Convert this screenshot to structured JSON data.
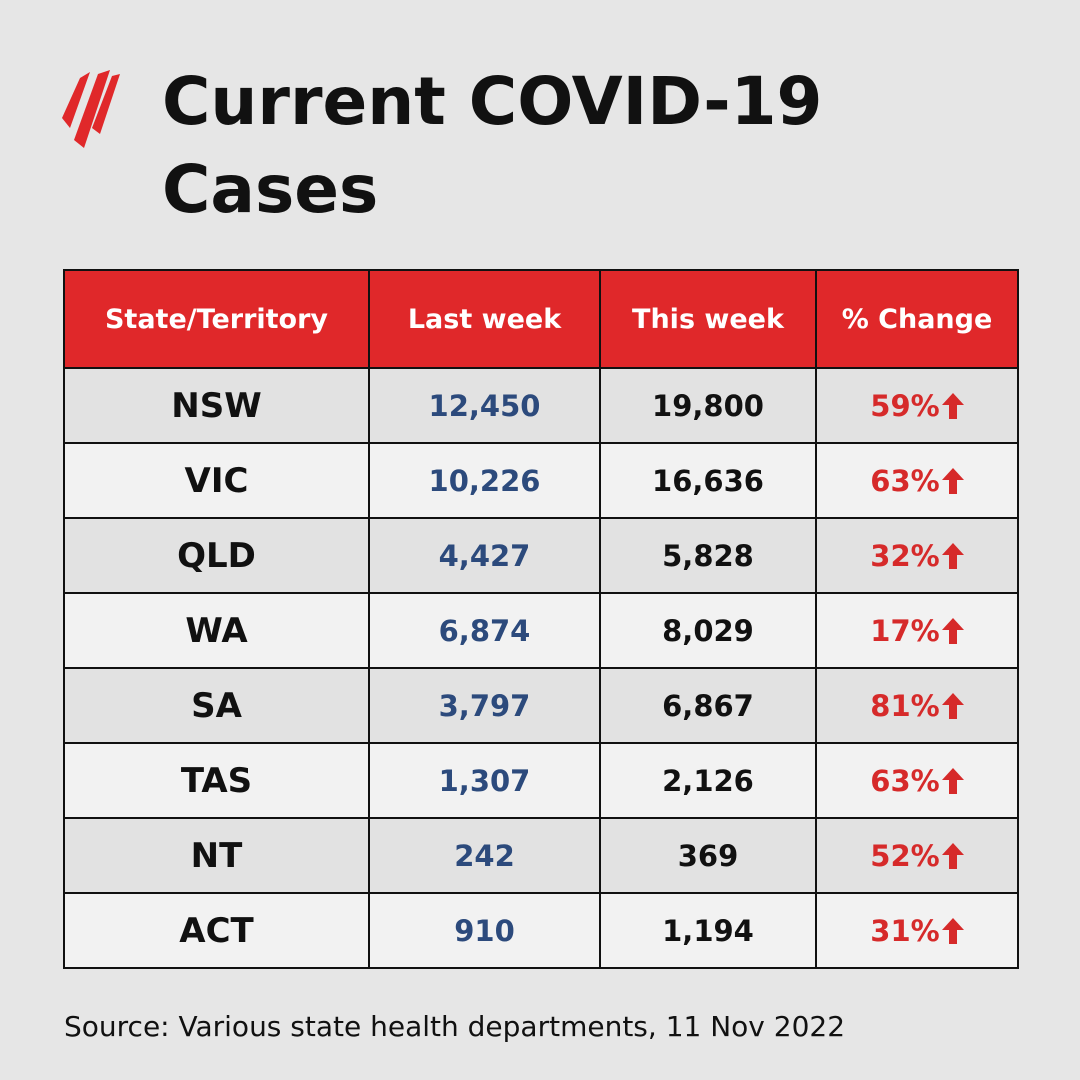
{
  "header": {
    "title_lines": [
      "Current COVID-19",
      "Cases"
    ]
  },
  "table": {
    "columns": [
      "State/Territory",
      "Last week",
      "This week",
      "% Change"
    ],
    "rows": [
      [
        "NSW",
        "12,450",
        "19,800",
        "59%"
      ],
      [
        "VIC",
        "10,226",
        "16,636",
        "63%"
      ],
      [
        "QLD",
        "4,427",
        "5,828",
        "32%"
      ],
      [
        "WA",
        "6,874",
        "8,029",
        "17%"
      ],
      [
        "SA",
        "3,797",
        "6,867",
        "81%"
      ],
      [
        "TAS",
        "1,307",
        "2,126",
        "63%"
      ],
      [
        "NT",
        "242",
        "369",
        "52%"
      ],
      [
        "ACT",
        "910",
        "1,194",
        "31%"
      ]
    ]
  },
  "footer": {
    "source": "Source: Various state health departments, 11 Nov 2022"
  }
}
